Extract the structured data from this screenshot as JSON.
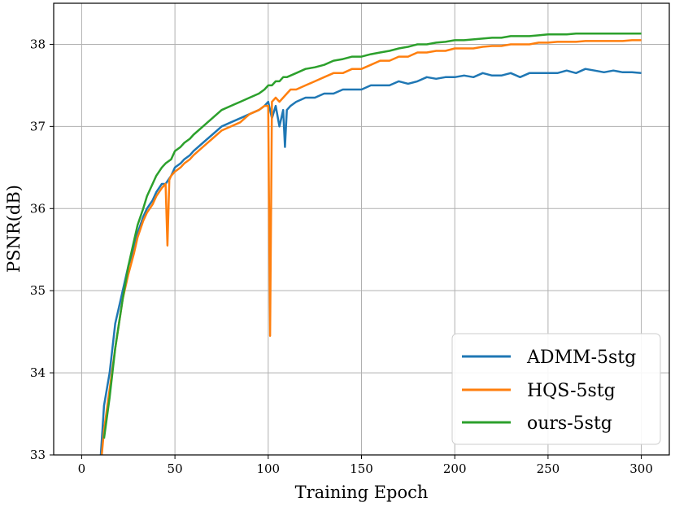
{
  "chart_data": {
    "type": "line",
    "title": "",
    "xlabel": "Training Epoch",
    "ylabel": "PSNR(dB)",
    "xlim": [
      -15,
      315
    ],
    "ylim": [
      33,
      38.5
    ],
    "xticks": [
      0,
      50,
      100,
      150,
      200,
      250,
      300
    ],
    "yticks": [
      33,
      34,
      35,
      36,
      37,
      38
    ],
    "xtick_labels": [
      "0",
      "50",
      "100",
      "150",
      "200",
      "250",
      "300"
    ],
    "ytick_labels": [
      "33",
      "34",
      "35",
      "36",
      "37",
      "38"
    ],
    "grid": true,
    "legend_position": "bottom-right",
    "series": [
      {
        "name": "ADMM-5stg",
        "color": "#1f77b4",
        "x": [
          10,
          12,
          15,
          18,
          20,
          22,
          25,
          28,
          30,
          33,
          35,
          38,
          40,
          43,
          45,
          48,
          50,
          53,
          55,
          58,
          60,
          65,
          70,
          75,
          80,
          85,
          90,
          95,
          98,
          100,
          102,
          104,
          106,
          108,
          109,
          110,
          112,
          115,
          120,
          125,
          130,
          135,
          140,
          145,
          150,
          155,
          160,
          165,
          170,
          175,
          180,
          185,
          190,
          195,
          200,
          205,
          210,
          215,
          220,
          225,
          230,
          235,
          240,
          245,
          250,
          255,
          260,
          265,
          270,
          275,
          280,
          285,
          290,
          295,
          300
        ],
        "values": [
          32.9,
          33.6,
          34.0,
          34.6,
          34.8,
          35.0,
          35.3,
          35.5,
          35.7,
          35.9,
          36.0,
          36.1,
          36.2,
          36.3,
          36.3,
          36.4,
          36.5,
          36.55,
          36.6,
          36.65,
          36.7,
          36.8,
          36.9,
          37.0,
          37.05,
          37.1,
          37.15,
          37.2,
          37.25,
          37.3,
          37.1,
          37.25,
          37.0,
          37.2,
          36.75,
          37.2,
          37.25,
          37.3,
          37.35,
          37.35,
          37.4,
          37.4,
          37.45,
          37.45,
          37.45,
          37.5,
          37.5,
          37.5,
          37.55,
          37.52,
          37.55,
          37.6,
          37.58,
          37.6,
          37.6,
          37.62,
          37.6,
          37.65,
          37.62,
          37.62,
          37.65,
          37.6,
          37.65,
          37.65,
          37.65,
          37.65,
          37.68,
          37.65,
          37.7,
          37.68,
          37.66,
          37.68,
          37.66,
          37.66,
          37.65
        ]
      },
      {
        "name": "HQS-5stg",
        "color": "#ff7f0e",
        "x": [
          10,
          12,
          15,
          18,
          20,
          22,
          25,
          28,
          30,
          33,
          35,
          38,
          40,
          43,
          45,
          46,
          47,
          48,
          50,
          53,
          55,
          58,
          60,
          65,
          70,
          75,
          80,
          85,
          90,
          95,
          98,
          100,
          101,
          102,
          104,
          106,
          108,
          110,
          112,
          115,
          120,
          125,
          130,
          135,
          140,
          145,
          150,
          155,
          160,
          165,
          170,
          175,
          180,
          185,
          190,
          195,
          200,
          205,
          210,
          215,
          220,
          225,
          230,
          235,
          240,
          245,
          250,
          255,
          260,
          265,
          270,
          275,
          280,
          285,
          290,
          295,
          300
        ],
        "values": [
          32.8,
          33.3,
          33.8,
          34.3,
          34.6,
          34.9,
          35.2,
          35.45,
          35.65,
          35.85,
          35.95,
          36.05,
          36.15,
          36.25,
          36.3,
          35.55,
          36.35,
          36.4,
          36.45,
          36.5,
          36.55,
          36.6,
          36.65,
          36.75,
          36.85,
          36.95,
          37.0,
          37.05,
          37.15,
          37.2,
          37.25,
          37.25,
          34.45,
          37.3,
          37.35,
          37.3,
          37.35,
          37.4,
          37.45,
          37.45,
          37.5,
          37.55,
          37.6,
          37.65,
          37.65,
          37.7,
          37.7,
          37.75,
          37.8,
          37.8,
          37.85,
          37.85,
          37.9,
          37.9,
          37.92,
          37.92,
          37.95,
          37.95,
          37.95,
          37.97,
          37.98,
          37.98,
          38.0,
          38.0,
          38.0,
          38.02,
          38.02,
          38.03,
          38.03,
          38.03,
          38.04,
          38.04,
          38.04,
          38.04,
          38.04,
          38.05,
          38.05
        ]
      },
      {
        "name": "ours-5stg",
        "color": "#2ca02c",
        "x": [
          12,
          15,
          18,
          20,
          22,
          25,
          28,
          30,
          33,
          35,
          38,
          40,
          43,
          45,
          48,
          50,
          53,
          55,
          58,
          60,
          65,
          70,
          75,
          80,
          85,
          90,
          95,
          98,
          100,
          102,
          104,
          106,
          108,
          110,
          112,
          115,
          120,
          125,
          130,
          135,
          140,
          145,
          150,
          155,
          160,
          165,
          170,
          175,
          180,
          185,
          190,
          195,
          200,
          205,
          210,
          215,
          220,
          225,
          230,
          235,
          240,
          245,
          250,
          255,
          260,
          265,
          270,
          275,
          280,
          285,
          290,
          295,
          300
        ],
        "values": [
          33.2,
          33.7,
          34.3,
          34.6,
          34.9,
          35.3,
          35.6,
          35.8,
          36.0,
          36.15,
          36.3,
          36.4,
          36.5,
          36.55,
          36.6,
          36.7,
          36.75,
          36.8,
          36.85,
          36.9,
          37.0,
          37.1,
          37.2,
          37.25,
          37.3,
          37.35,
          37.4,
          37.45,
          37.5,
          37.5,
          37.55,
          37.55,
          37.6,
          37.6,
          37.62,
          37.65,
          37.7,
          37.72,
          37.75,
          37.8,
          37.82,
          37.85,
          37.85,
          37.88,
          37.9,
          37.92,
          37.95,
          37.97,
          38.0,
          38.0,
          38.02,
          38.03,
          38.05,
          38.05,
          38.06,
          38.07,
          38.08,
          38.08,
          38.1,
          38.1,
          38.1,
          38.11,
          38.12,
          38.12,
          38.12,
          38.13,
          38.13,
          38.13,
          38.13,
          38.13,
          38.13,
          38.13,
          38.13
        ]
      }
    ]
  }
}
